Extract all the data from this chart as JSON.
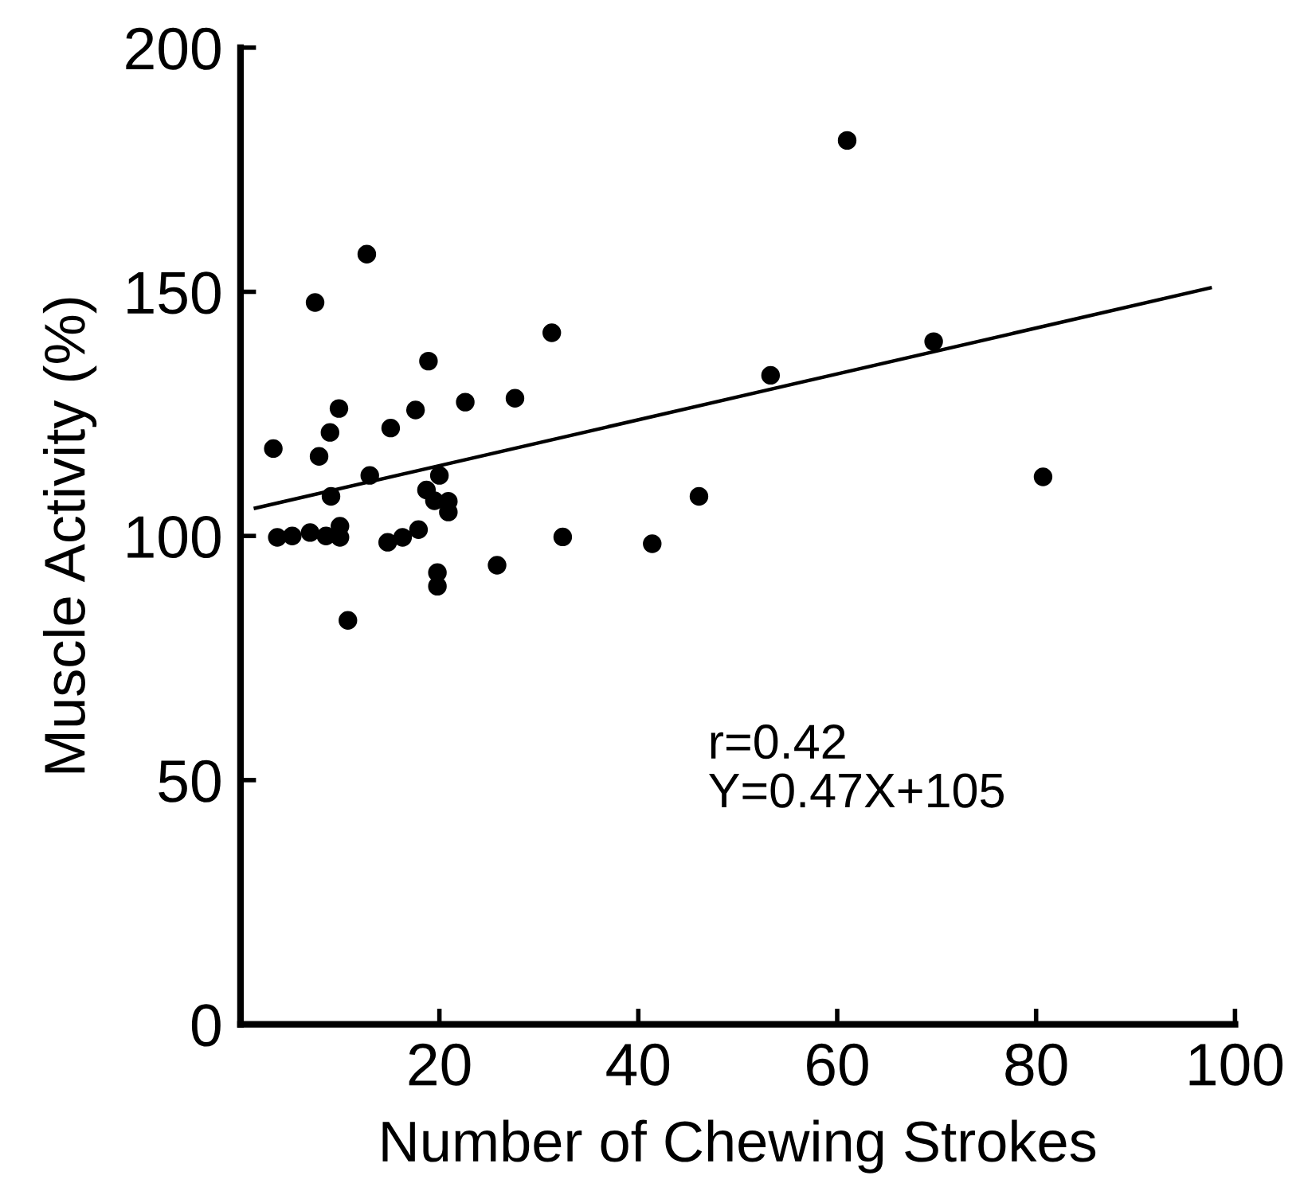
{
  "chart_data": {
    "type": "scatter",
    "xlabel": "Number of Chewing Strokes",
    "ylabel": "Muscle Activity (%)",
    "xlim": [
      0,
      100
    ],
    "ylim": [
      0,
      200
    ],
    "xticks": [
      20,
      40,
      60,
      80,
      100
    ],
    "yticks": [
      0,
      50,
      100,
      150,
      200
    ],
    "grid": false,
    "legend": false,
    "marker": "circle",
    "series": [
      {
        "color": "#000000",
        "x": [
          3.3,
          3.7,
          5.2,
          7.0,
          7.5,
          7.9,
          9.0,
          9.9,
          9.1,
          8.6,
          10.0,
          10.0,
          10.8,
          12.7,
          13.0,
          15.1,
          14.8,
          16.3,
          17.9,
          17.6,
          18.9,
          18.7,
          20.0,
          19.5,
          20.9,
          20.9,
          19.8,
          19.8,
          22.6,
          27.6,
          25.8,
          31.3,
          32.4,
          41.4,
          46.1,
          53.3,
          61,
          69.7,
          80.7
        ],
        "values": [
          117.9,
          99.7,
          100,
          100.7,
          147.8,
          116.3,
          121.2,
          126.1,
          108.1,
          100,
          102,
          99.7,
          82.7,
          157.7,
          112.4,
          122.1,
          98.7,
          99.7,
          101.3,
          125.8,
          135.8,
          109.4,
          112.4,
          107.2,
          107.1,
          104.9,
          92.5,
          89.7,
          127.4,
          128.2,
          94.0,
          141.6,
          99.8,
          98.4,
          108.1,
          132.9,
          181,
          139.8,
          112.1
        ]
      },
      {
        "type": "line",
        "color": "#000000",
        "marker": "none",
        "line_style": "solid",
        "x": [
          1.5,
          97.5
        ],
        "values": [
          105.7,
          150.8
        ]
      }
    ],
    "annotations": [
      "r=0.42",
      "Y=0.47X+105"
    ]
  }
}
